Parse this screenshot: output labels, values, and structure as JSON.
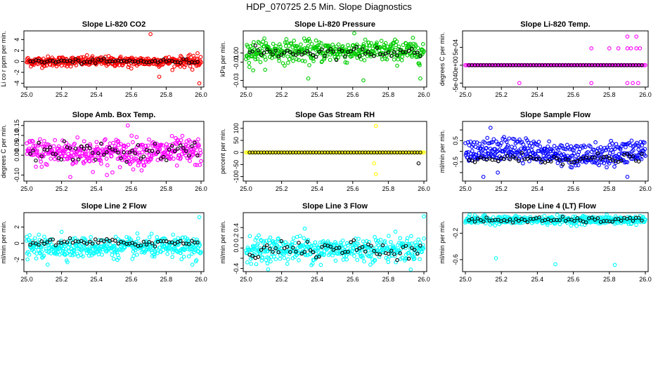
{
  "title": "HDP_070725  2.5 Min. Slope Diagnostics",
  "colors": {
    "red": "#ff0000",
    "green": "#00cc00",
    "magenta": "#ff00ff",
    "yellow": "#ffff00",
    "blue": "#0000ff",
    "cyan": "#00ffff",
    "black": "#000000"
  },
  "chart_data": [
    {
      "type": "scatter",
      "title": "Slope Li-820 CO2",
      "ylabel": "Li co r ppm per min.",
      "xlim": [
        25.0,
        26.0
      ],
      "ylim": [
        -4.3,
        5.2
      ],
      "xticks": [
        25.0,
        25.2,
        25.4,
        25.6,
        25.8,
        26.0
      ],
      "yticks": [
        -4,
        -2,
        0,
        2,
        4
      ],
      "ytick_labels": [
        "-4",
        "-2",
        "0",
        "2",
        "4"
      ],
      "color": "red",
      "main_mean": 0,
      "main_sd": 0.45,
      "black_sd": 0.2,
      "black_offset": 0,
      "outliers": [
        [
          25.71,
          5.0
        ],
        [
          25.76,
          -2.8
        ],
        [
          25.95,
          -1.5
        ],
        [
          25.98,
          1.5
        ],
        [
          25.99,
          -4.0
        ],
        [
          25.6,
          -1.3
        ]
      ]
    },
    {
      "type": "scatter",
      "title": "Slope Li-820 Pressure",
      "ylabel": "kPa per min.",
      "xlim": [
        25.0,
        26.0
      ],
      "ylim": [
        -0.035,
        0.022
      ],
      "xticks": [
        25.0,
        25.2,
        25.4,
        25.6,
        25.8,
        26.0
      ],
      "yticks": [
        -0.03,
        -0.01,
        0.0
      ],
      "ytick_labels": [
        "-0.03",
        "-0.01",
        "0.00"
      ],
      "color": "green",
      "main_mean": 0.002,
      "main_sd": 0.006,
      "black_sd": 0.003,
      "black_offset": -0.001,
      "outliers": [
        [
          25.35,
          -0.028
        ],
        [
          25.66,
          -0.03
        ],
        [
          25.98,
          -0.028
        ],
        [
          25.04,
          -0.019
        ]
      ]
    },
    {
      "type": "scatter",
      "title": "Slope Li-820 Temp.",
      "ylabel": "degrees C per min.",
      "xlim": [
        25.0,
        26.0
      ],
      "ylim": [
        -0.00055,
        0.0009
      ],
      "xticks": [
        25.0,
        25.2,
        25.4,
        25.6,
        25.8,
        26.0
      ],
      "yticks": [
        -0.0005,
        0.0,
        0.0005
      ],
      "ytick_labels": [
        "-5e-04",
        "0e+00",
        "5e-04"
      ],
      "color": "magenta",
      "main_mean": 0,
      "main_sd": 0,
      "black_sd": 0,
      "black_offset": 0,
      "outliers": [
        [
          25.7,
          0.00047
        ],
        [
          25.8,
          0.00047
        ],
        [
          25.85,
          0.00047
        ],
        [
          25.9,
          0.00047
        ],
        [
          25.92,
          0.00047
        ],
        [
          25.95,
          0.00047
        ],
        [
          25.97,
          0.00047
        ],
        [
          25.9,
          0.0008
        ],
        [
          25.95,
          0.0008
        ],
        [
          25.7,
          -0.0005
        ],
        [
          25.9,
          -0.0005
        ],
        [
          25.93,
          -0.0005
        ],
        [
          25.96,
          -0.0005
        ],
        [
          25.3,
          -0.0005
        ]
      ]
    },
    {
      "type": "scatter",
      "title": "Slope Amb. Box Temp.",
      "ylabel": "degrees C per min.",
      "xlim": [
        25.0,
        26.0
      ],
      "ylim": [
        -0.12,
        0.16
      ],
      "xticks": [
        25.0,
        25.2,
        25.4,
        25.6,
        25.8,
        26.0
      ],
      "yticks": [
        -0.1,
        0.0,
        0.05,
        0.1,
        0.15
      ],
      "ytick_labels": [
        "-0.10",
        "0.00",
        "0.05",
        "0.10",
        "0.15"
      ],
      "color": "magenta",
      "main_mean": 0.015,
      "main_sd": 0.035,
      "black_sd": 0.025,
      "black_offset": 0,
      "outliers": [
        [
          25.58,
          0.15
        ],
        [
          25.25,
          -0.11
        ],
        [
          25.46,
          -0.1
        ]
      ]
    },
    {
      "type": "scatter",
      "title": "Slope Gas Stream RH",
      "ylabel": "percent per min.",
      "xlim": [
        25.0,
        26.0
      ],
      "ylim": [
        -110,
        120
      ],
      "xticks": [
        25.0,
        25.2,
        25.4,
        25.6,
        25.8,
        26.0
      ],
      "yticks": [
        -100,
        -50,
        0,
        50,
        100
      ],
      "ytick_labels": [
        "-100",
        "-50",
        "0",
        "50",
        "100"
      ],
      "color": "yellow",
      "main_mean": 0,
      "main_sd": 0,
      "black_sd": 0,
      "black_offset": 0,
      "outliers": [
        [
          25.73,
          110
        ],
        [
          25.72,
          -45
        ],
        [
          25.73,
          -90
        ],
        [
          25.98,
          0
        ],
        [
          25.02,
          0
        ]
      ],
      "black_outliers": [
        [
          25.97,
          -45
        ]
      ]
    },
    {
      "type": "scatter",
      "title": "Slope Sample Flow",
      "ylabel": "ml/min per min.",
      "xlim": [
        25.0,
        26.0
      ],
      "ylim": [
        -1.3,
        1.3
      ],
      "xticks": [
        25.0,
        25.2,
        25.4,
        25.6,
        25.8,
        26.0
      ],
      "yticks": [
        -1.0,
        -0.5,
        0.0,
        0.5,
        1.0
      ],
      "ytick_labels": [
        "",
        "-0.5",
        "",
        "0.5",
        ""
      ],
      "color": "blue",
      "main_mean": 0,
      "main_sd": 0.25,
      "black_sd": 0.12,
      "black_offset": -0.35,
      "bands": true,
      "outliers": [
        [
          25.14,
          1.1
        ],
        [
          25.1,
          -1.2
        ],
        [
          25.9,
          -1.2
        ],
        [
          25.18,
          -1.0
        ]
      ]
    },
    {
      "type": "scatter",
      "title": "Slope Line 2 Flow",
      "ylabel": "ml/min per min.",
      "xlim": [
        25.0,
        26.0
      ],
      "ylim": [
        -3.2,
        3.5
      ],
      "xticks": [
        25.0,
        25.2,
        25.4,
        25.6,
        25.8,
        26.0
      ],
      "yticks": [
        -2,
        0,
        2
      ],
      "ytick_labels": [
        "-2",
        "0",
        "2"
      ],
      "color": "cyan",
      "main_mean": -0.5,
      "main_sd": 0.6,
      "black_sd": 0.25,
      "black_offset": 0.6,
      "outliers": [
        [
          25.99,
          3.2
        ],
        [
          25.95,
          -2.6
        ],
        [
          25.97,
          -2.2
        ],
        [
          25.12,
          -2.6
        ],
        [
          25.2,
          1.4
        ],
        [
          25.0,
          0.8
        ]
      ]
    },
    {
      "type": "scatter",
      "title": "Slope Line 3 Flow",
      "ylabel": "ml/min per min.",
      "xlim": [
        25.0,
        26.0
      ],
      "ylim": [
        -0.42,
        0.65
      ],
      "xticks": [
        25.0,
        25.2,
        25.4,
        25.6,
        25.8,
        26.0
      ],
      "yticks": [
        -0.4,
        -0.2,
        0.0,
        0.2,
        0.4
      ],
      "ytick_labels": [
        "-0.4",
        "",
        "0.0",
        "0.2",
        "0.4"
      ],
      "color": "cyan",
      "main_mean": -0.02,
      "main_sd": 0.12,
      "black_sd": 0.1,
      "black_offset": 0,
      "outliers": [
        [
          26.0,
          0.62
        ],
        [
          25.33,
          0.38
        ],
        [
          25.12,
          -0.3
        ],
        [
          25.42,
          -0.33
        ]
      ]
    },
    {
      "type": "scatter",
      "title": "Slope Line 4 (LT) Flow",
      "ylabel": "ml/min per min.",
      "xlim": [
        25.0,
        26.0
      ],
      "ylim": [
        -0.75,
        0.08
      ],
      "xticks": [
        25.0,
        25.2,
        25.4,
        25.6,
        25.8,
        26.0
      ],
      "yticks": [
        -0.6,
        -0.2
      ],
      "ytick_labels": [
        "-0.6",
        "-0.2"
      ],
      "color": "cyan",
      "main_mean": 0,
      "main_sd": 0.03,
      "black_sd": 0.02,
      "black_offset": 0,
      "outliers": [
        [
          25.17,
          -0.58
        ],
        [
          25.5,
          -0.67
        ],
        [
          25.83,
          -0.68
        ]
      ]
    }
  ]
}
